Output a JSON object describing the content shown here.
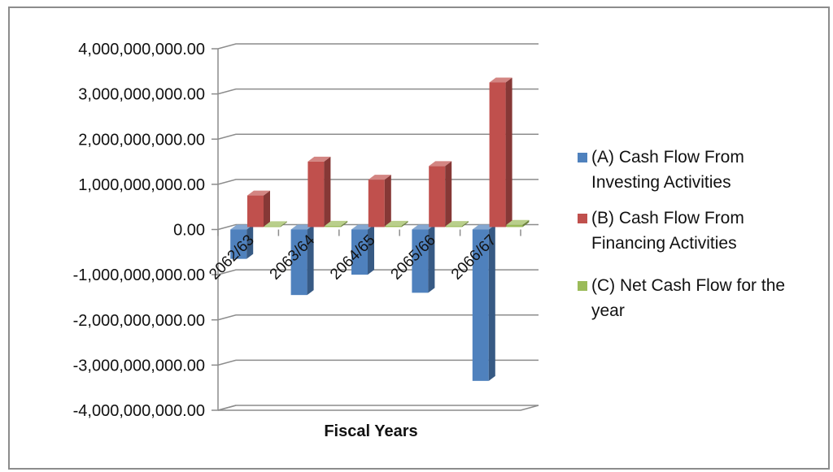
{
  "chart_data": {
    "type": "bar",
    "title": "",
    "xlabel": "Fiscal Years",
    "ylabel": "",
    "ylim": [
      -4000000000,
      4000000000
    ],
    "y_ticks": [
      4000000000,
      3000000000,
      2000000000,
      1000000000,
      0,
      -1000000000,
      -2000000000,
      -3000000000,
      -4000000000
    ],
    "y_tick_labels": [
      "4,000,000,000.00",
      "3,000,000,000.00",
      "2,000,000,000.00",
      "1,000,000,000.00",
      "0.00",
      "-1,000,000,000.00",
      "-2,000,000,000.00",
      "-3,000,000,000.00",
      "-4,000,000,000.00"
    ],
    "grid": true,
    "legend_position": "right",
    "style": "3d-clustered-column",
    "categories": [
      "2062/63",
      "2063/64",
      "2064/65",
      "2065/66",
      "2066/67"
    ],
    "series": [
      {
        "name": "(A) Cash Flow From Investing Activities",
        "legend_lines": [
          "(A) Cash Flow From",
          "Investing Activities"
        ],
        "color": "#4f81bd",
        "values": [
          -650000000,
          -1450000000,
          -1000000000,
          -1400000000,
          -3350000000
        ]
      },
      {
        "name": "(B) Cash Flow From Financing Activities",
        "legend_lines": [
          "(B) Cash Flow From",
          "Financing Activities"
        ],
        "color": "#c0504d",
        "values": [
          700000000,
          1450000000,
          1050000000,
          1350000000,
          3200000000
        ]
      },
      {
        "name": "(C) Net Cash Flow for the year",
        "legend_lines": [
          "(C) Net Cash Flow for the",
          "year"
        ],
        "color": "#9bbb59",
        "values": [
          20000000,
          30000000,
          30000000,
          25000000,
          50000000
        ]
      }
    ]
  }
}
